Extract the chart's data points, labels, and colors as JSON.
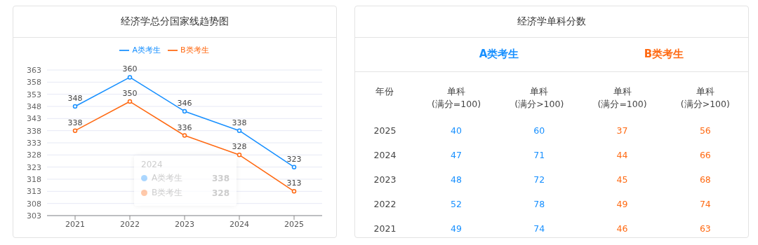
{
  "chart_data": [
    {
      "type": "line",
      "title": "经济学总分国家线趋势图",
      "categories": [
        "2021",
        "2022",
        "2023",
        "2024",
        "2025"
      ],
      "series": [
        {
          "name": "A类考生",
          "color": "#1890ff",
          "values": [
            348,
            360,
            346,
            338,
            323
          ]
        },
        {
          "name": "B类考生",
          "color": "#ff6a13",
          "values": [
            338,
            350,
            336,
            328,
            313
          ]
        }
      ],
      "ylim": [
        303,
        363
      ],
      "yticks": [
        303,
        308,
        313,
        318,
        323,
        328,
        333,
        338,
        343,
        348,
        353,
        358,
        363
      ],
      "grid": "y",
      "legend": "top",
      "marker": "circle",
      "data_labels": true,
      "annotations": [
        "2024",
        "A类考生 338",
        "B类考生 328"
      ]
    },
    {
      "type": "heatmap",
      "title": "经济学单科分数",
      "ylabel": "年份",
      "categories": [
        "单科\n(满分=100)",
        "单科\n(满分>100)",
        "单科\n(满分=100)",
        "单科\n(满分>100)"
      ],
      "y_categories": [
        "2025",
        "2024",
        "2023",
        "2022",
        "2021"
      ],
      "cells": [
        [
          40,
          60,
          37,
          56
        ],
        [
          47,
          71,
          44,
          66
        ],
        [
          48,
          72,
          45,
          68
        ],
        [
          52,
          78,
          49,
          74
        ],
        [
          49,
          74,
          46,
          63
        ]
      ],
      "data_labels": true,
      "annotations": [
        "A类考生",
        "B类考生"
      ]
    }
  ]
}
